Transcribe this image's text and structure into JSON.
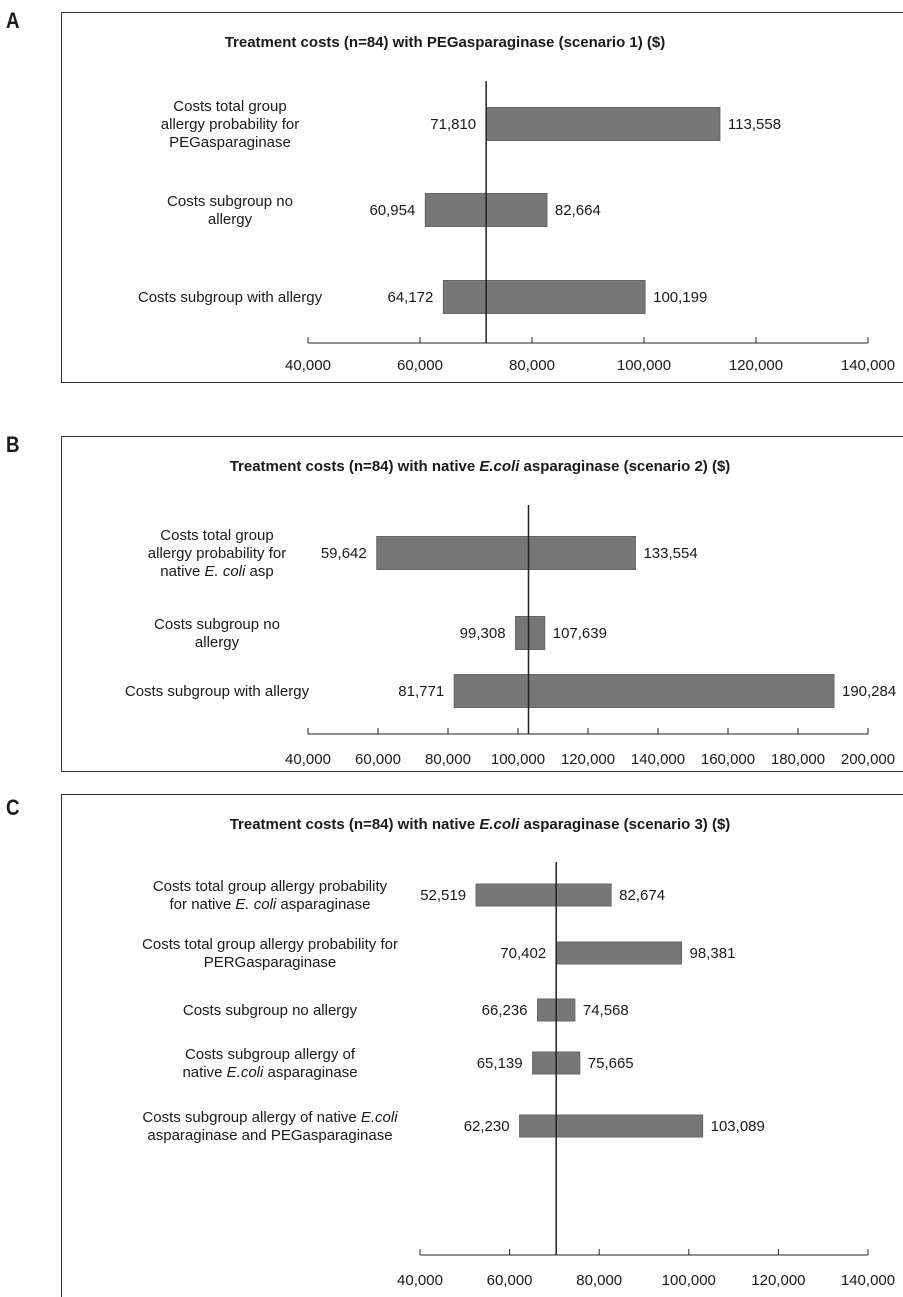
{
  "panels": [
    {
      "letter": "A"
    },
    {
      "letter": "B"
    },
    {
      "letter": "C"
    }
  ],
  "chart_data": [
    {
      "type": "bar",
      "subtype": "tornado",
      "title": [
        {
          "t": "Treatment costs (n=84) with PEGasparaginase (scenario 1) ($)",
          "i": false
        }
      ],
      "xlim": [
        40000,
        140000
      ],
      "xticks": [
        "40,000",
        "60,000",
        "80,000",
        "100,000",
        "120,000",
        "140,000"
      ],
      "baseline": 71810,
      "bar_color": "#777777",
      "bars": [
        {
          "label": [
            [
              {
                "t": "Costs total group",
                "i": false
              }
            ],
            [
              {
                "t": "allergy probability for",
                "i": false
              }
            ],
            [
              {
                "t": "PEGasparaginase",
                "i": false
              }
            ]
          ],
          "low": 71810,
          "high": 113558,
          "low_label": "71,810",
          "high_label": "113,558"
        },
        {
          "label": [
            [
              {
                "t": "Costs subgroup no",
                "i": false
              }
            ],
            [
              {
                "t": "allergy",
                "i": false
              }
            ]
          ],
          "low": 60954,
          "high": 82664,
          "low_label": "60,954",
          "high_label": "82,664"
        },
        {
          "label": [
            [
              {
                "t": "Costs subgroup with allergy",
                "i": false
              }
            ]
          ],
          "low": 64172,
          "high": 100199,
          "low_label": "64,172",
          "high_label": "100,199"
        }
      ]
    },
    {
      "type": "bar",
      "subtype": "tornado",
      "title": [
        {
          "t": "Treatment costs (n=84) with native ",
          "i": false
        },
        {
          "t": "E.coli",
          "i": true
        },
        {
          "t": " asparaginase (scenario 2) ($)",
          "i": false
        }
      ],
      "xlim": [
        40000,
        200000
      ],
      "xticks": [
        "40,000",
        "60,000",
        "80,000",
        "100,000",
        "120,000",
        "140,000",
        "160,000",
        "180,000",
        "200,000"
      ],
      "baseline": 103000,
      "bar_color": "#777777",
      "bars": [
        {
          "label": [
            [
              {
                "t": "Costs total group",
                "i": false
              }
            ],
            [
              {
                "t": "allergy probability for",
                "i": false
              }
            ],
            [
              {
                "t": "native ",
                "i": false
              },
              {
                "t": "E. coli",
                "i": true
              },
              {
                "t": " asp",
                "i": false
              }
            ]
          ],
          "low": 59642,
          "high": 133554,
          "low_label": "59,642",
          "high_label": "133,554"
        },
        {
          "label": [
            [
              {
                "t": "Costs subgroup no",
                "i": false
              }
            ],
            [
              {
                "t": "allergy",
                "i": false
              }
            ]
          ],
          "low": 99308,
          "high": 107639,
          "low_label": "99,308",
          "high_label": "107,639"
        },
        {
          "label": [
            [
              {
                "t": "Costs subgroup with allergy",
                "i": false
              }
            ]
          ],
          "low": 81771,
          "high": 190284,
          "low_label": "81,771",
          "high_label": "190,284"
        }
      ]
    },
    {
      "type": "bar",
      "subtype": "tornado",
      "title": [
        {
          "t": "Treatment costs (n=84) with native ",
          "i": false
        },
        {
          "t": "E.coli",
          "i": true
        },
        {
          "t": " asparaginase (scenario 3) ($)",
          "i": false
        }
      ],
      "xlim": [
        40000,
        140000
      ],
      "xticks": [
        "40,000",
        "60,000",
        "80,000",
        "100,000",
        "120,000",
        "140,000"
      ],
      "baseline": 70402,
      "bar_color": "#777777",
      "bars": [
        {
          "label": [
            [
              {
                "t": "Costs total group allergy probability",
                "i": false
              }
            ],
            [
              {
                "t": "for native ",
                "i": false
              },
              {
                "t": "E. coli",
                "i": true
              },
              {
                "t": " asparaginase",
                "i": false
              }
            ]
          ],
          "low": 52519,
          "high": 82674,
          "low_label": "52,519",
          "high_label": "82,674"
        },
        {
          "label": [
            [
              {
                "t": "Costs total group allergy probability for",
                "i": false
              }
            ],
            [
              {
                "t": "PERGasparaginase",
                "i": false
              }
            ]
          ],
          "low": 70402,
          "high": 98381,
          "low_label": "70,402",
          "high_label": "98,381"
        },
        {
          "label": [
            [
              {
                "t": "Costs subgroup no allergy",
                "i": false
              }
            ]
          ],
          "low": 66236,
          "high": 74568,
          "low_label": "66,236",
          "high_label": "74,568"
        },
        {
          "label": [
            [
              {
                "t": "Costs subgroup allergy of",
                "i": false
              }
            ],
            [
              {
                "t": "native ",
                "i": false
              },
              {
                "t": "E.coli",
                "i": true
              },
              {
                "t": " asparaginase",
                "i": false
              }
            ]
          ],
          "low": 65139,
          "high": 75665,
          "low_label": "65,139",
          "high_label": "75,665"
        },
        {
          "label": [
            [
              {
                "t": "Costs subgroup allergy of native ",
                "i": false
              },
              {
                "t": "E.coli",
                "i": true
              }
            ],
            [
              {
                "t": "asparaginase and PEGasparaginase",
                "i": false
              }
            ]
          ],
          "low": 62230,
          "high": 103089,
          "low_label": "62,230",
          "high_label": "103,089"
        }
      ]
    }
  ]
}
